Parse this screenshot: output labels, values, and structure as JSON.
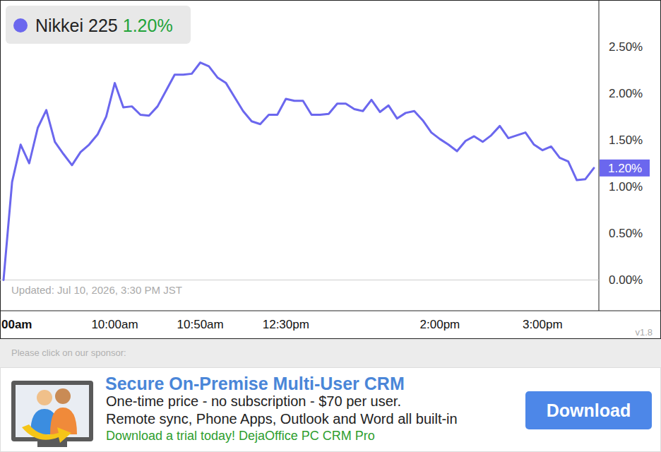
{
  "chart_data": {
    "type": "line",
    "categories": [
      null,
      "00am",
      null,
      null,
      null,
      null,
      null,
      null,
      null,
      null,
      null,
      null,
      null,
      "10:00am",
      null,
      null,
      null,
      null,
      null,
      null,
      null,
      null,
      null,
      "10:50am",
      null,
      null,
      null,
      null,
      null,
      null,
      null,
      null,
      null,
      "12:30pm",
      null,
      null,
      null,
      null,
      null,
      null,
      null,
      null,
      null,
      null,
      null,
      null,
      null,
      null,
      null,
      null,
      null,
      "2:00pm",
      null,
      null,
      null,
      null,
      null,
      null,
      null,
      null,
      null,
      null,
      null,
      "3:00pm",
      null,
      null,
      null,
      null,
      null,
      null
    ],
    "series": [
      {
        "name": "Nikkei 225",
        "color": "#6b67ee",
        "values": [
          0,
          1.05,
          1.45,
          1.25,
          1.63,
          1.82,
          1.48,
          1.35,
          1.23,
          1.37,
          1.45,
          1.56,
          1.75,
          2.11,
          1.85,
          1.86,
          1.77,
          1.76,
          1.86,
          2.03,
          2.2,
          2.2,
          2.21,
          2.33,
          2.29,
          2.17,
          2.11,
          1.96,
          1.81,
          1.7,
          1.67,
          1.77,
          1.77,
          1.94,
          1.92,
          1.92,
          1.77,
          1.77,
          1.78,
          1.89,
          1.89,
          1.83,
          1.81,
          1.93,
          1.8,
          1.87,
          1.73,
          1.79,
          1.81,
          1.71,
          1.58,
          1.51,
          1.45,
          1.38,
          1.49,
          1.54,
          1.48,
          1.55,
          1.65,
          1.52,
          1.55,
          1.58,
          1.45,
          1.39,
          1.43,
          1.31,
          1.27,
          1.07,
          1.08,
          1.2
        ],
        "value_labels": [
          null,
          null,
          null,
          null,
          null,
          null,
          null,
          null,
          null,
          null,
          null,
          null,
          null,
          null,
          null,
          null,
          null,
          null,
          null,
          null,
          null,
          null,
          null,
          null,
          null,
          null,
          null,
          null,
          null,
          null,
          null,
          null,
          null,
          null,
          null,
          null,
          null,
          null,
          null,
          null,
          null,
          null,
          null,
          null,
          null,
          null,
          null,
          null,
          null,
          null,
          null,
          null,
          null,
          null,
          null,
          null,
          null,
          null,
          null,
          null,
          null,
          null,
          null,
          null,
          null,
          null,
          null,
          null,
          null,
          "1.20%"
        ]
      }
    ],
    "ylim": [
      -0.33,
      3.0
    ],
    "yticks": [
      {
        "value": 0,
        "label": "0.00%"
      },
      {
        "value": 0.5,
        "label": "0.50%"
      },
      {
        "value": 1,
        "label": "1.00%"
      },
      {
        "value": 1.5,
        "label": "1.50%"
      },
      {
        "value": 2,
        "label": "2.00%"
      },
      {
        "value": 2.5,
        "label": "2.50%"
      }
    ],
    "grid": false,
    "legend": "top-left",
    "updated": "Updated: Jul 10, 2026, 3:30 PM JST",
    "version": "v1.8"
  },
  "sponsor": {
    "prompt": "Please click on our sponsor:",
    "title": "Secure On-Premise Multi-User CRM",
    "lines": [
      "One-time price - no subscription - $70 per user.",
      "Remote sync, Phone Apps, Outlook and Word all built-in"
    ],
    "tagline": "Download a trial today! DejaOffice PC CRM Pro",
    "button": "Download"
  }
}
